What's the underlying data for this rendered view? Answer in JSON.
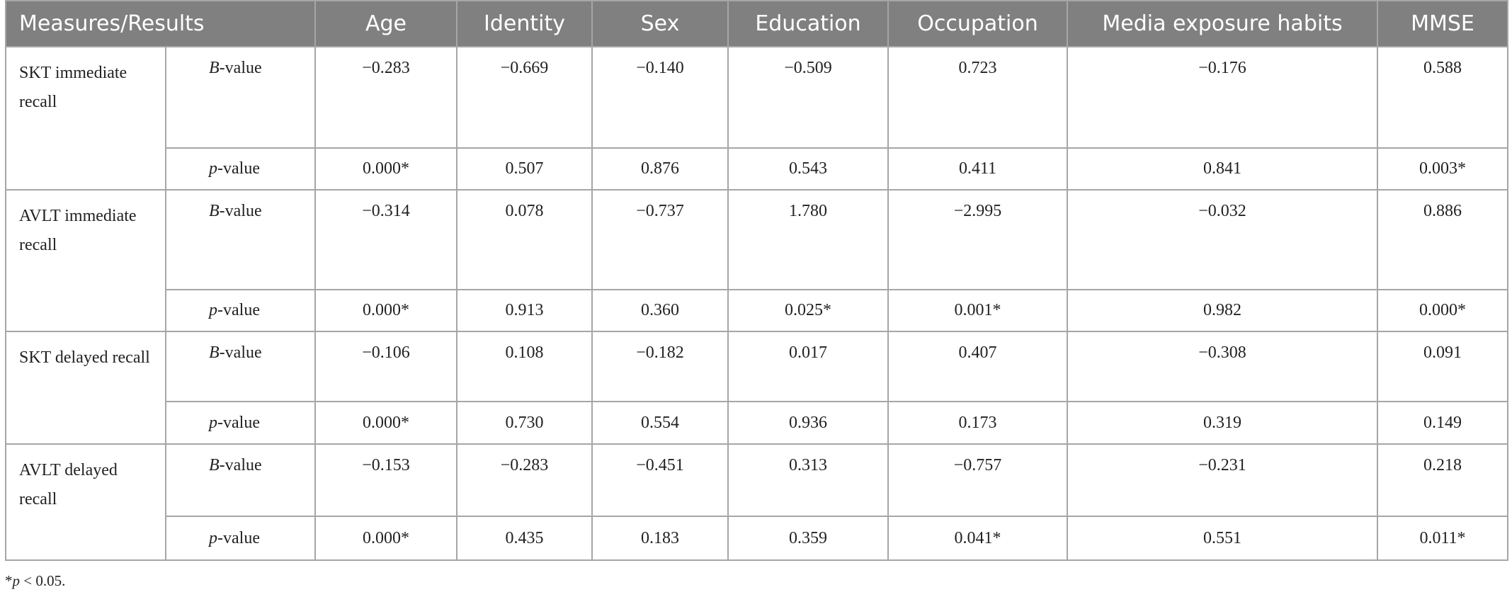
{
  "table": {
    "columns": [
      "Measures/Results",
      "Age",
      "Identity",
      "Sex",
      "Education",
      "Occupation",
      "Media exposure habits",
      "MMSE"
    ],
    "groups": [
      {
        "label": "SKT immediate recall",
        "rows": [
          {
            "measure": "B-value",
            "values": [
              "−0.283",
              "−0.669",
              "−0.140",
              "−0.509",
              "0.723",
              "−0.176",
              "0.588"
            ]
          },
          {
            "measure": "p-value",
            "values": [
              "0.000*",
              "0.507",
              "0.876",
              "0.543",
              "0.411",
              "0.841",
              "0.003*"
            ]
          }
        ]
      },
      {
        "label": "AVLT immediate recall",
        "rows": [
          {
            "measure": "B-value",
            "values": [
              "−0.314",
              "0.078",
              "−0.737",
              "1.780",
              "−2.995",
              "−0.032",
              "0.886"
            ]
          },
          {
            "measure": "p-value",
            "values": [
              "0.000*",
              "0.913",
              "0.360",
              "0.025*",
              "0.001*",
              "0.982",
              "0.000*"
            ]
          }
        ]
      },
      {
        "label": "SKT delayed recall",
        "rows": [
          {
            "measure": "B-value",
            "values": [
              "−0.106",
              "0.108",
              "−0.182",
              "0.017",
              "0.407",
              "−0.308",
              "0.091"
            ]
          },
          {
            "measure": "p-value",
            "values": [
              "0.000*",
              "0.730",
              "0.554",
              "0.936",
              "0.173",
              "0.319",
              "0.149"
            ]
          }
        ]
      },
      {
        "label": "AVLT delayed recall",
        "rows": [
          {
            "measure": "B-value",
            "values": [
              "−0.153",
              "−0.283",
              "−0.451",
              "0.313",
              "−0.757",
              "−0.231",
              "0.218"
            ]
          },
          {
            "measure": "p-value",
            "values": [
              "0.000*",
              "0.435",
              "0.183",
              "0.359",
              "0.041*",
              "0.551",
              "0.011*"
            ]
          }
        ]
      }
    ],
    "footnote": "*p < 0.05."
  }
}
